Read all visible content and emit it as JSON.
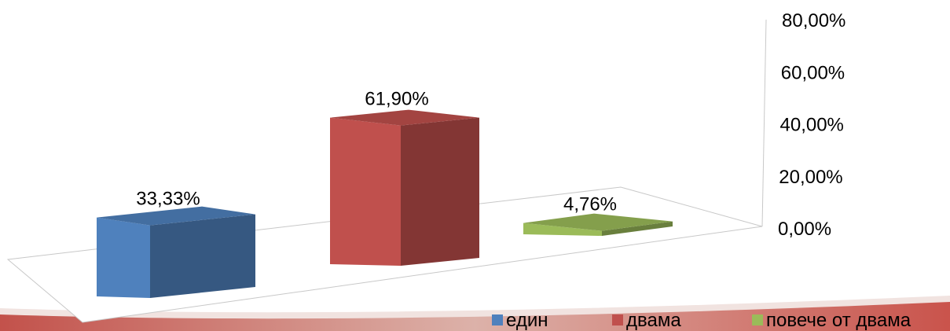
{
  "chart_data": {
    "type": "bar",
    "title": "",
    "xlabel": "",
    "ylabel": "",
    "ylim": [
      0,
      0.8
    ],
    "y_ticks": [
      "0,00%",
      "20,00%",
      "40,00%",
      "60,00%",
      "80,00%"
    ],
    "categories": [
      "един",
      "двама",
      "повече от двама"
    ],
    "values": [
      0.3333,
      0.619,
      0.0476
    ],
    "value_labels": [
      "33,33%",
      "61,90%",
      "4,76%"
    ],
    "colors": [
      "#4F81BD",
      "#C0504D",
      "#9BBB59"
    ],
    "grid": false,
    "legend_position": "bottom-right",
    "perspective": "3d"
  }
}
